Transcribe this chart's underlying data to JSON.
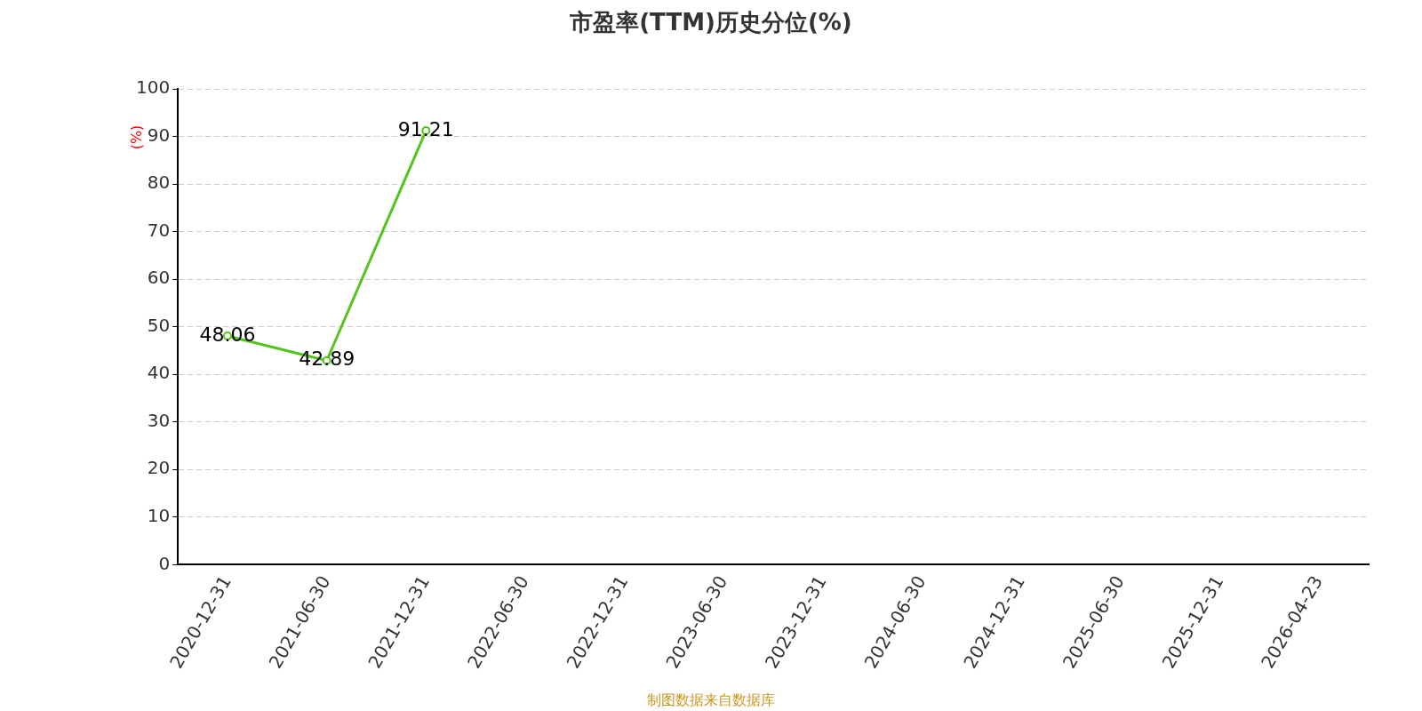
{
  "chart_data": {
    "type": "line",
    "title": "市盈率(TTM)历史分位(%)",
    "ylabel": "(%)",
    "categories": [
      "2020-12-31",
      "2021-06-30",
      "2021-12-31",
      "2022-06-30",
      "2022-12-31",
      "2023-06-30",
      "2023-12-31",
      "2024-06-30",
      "2024-12-31",
      "2025-06-30",
      "2025-12-31",
      "2026-04-23"
    ],
    "series": [
      {
        "color": "#52c41a",
        "values": [
          48.06,
          42.89,
          91.21,
          null,
          null,
          null,
          null,
          null,
          null,
          null,
          null,
          null
        ]
      }
    ],
    "ylim": [
      0,
      100
    ],
    "yticks": [
      0,
      10,
      20,
      30,
      40,
      50,
      60,
      70,
      80,
      90,
      100
    ],
    "grid": "y",
    "legend": false,
    "marker": "circle",
    "line_style": "solid",
    "data_labels": true,
    "annotations": [
      "制图数据来自数据库"
    ]
  }
}
